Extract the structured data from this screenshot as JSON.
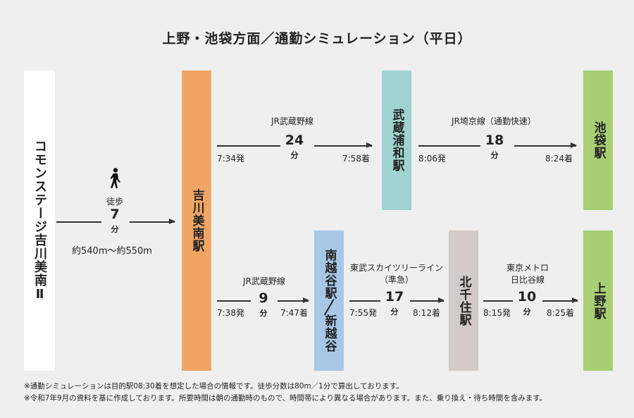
{
  "title": "上野・池袋方面／通勤シミュレーション（平日）",
  "stations": {
    "home": "コモンステージ吉川美南Ⅱ",
    "yoshikawa": "吉川美南駅",
    "musashi_urawa": "武蔵浦和駅",
    "ikebukuro": "池袋駅",
    "minami_koshigaya": "南越谷駅",
    "shin_koshigaya": "新越谷",
    "kita_senju": "北千住駅",
    "ueno": "上野駅"
  },
  "walk": {
    "label": "徒歩",
    "minutes": "7",
    "unit": "分",
    "distance": "約540m〜約550m",
    "icon": "walking-person-icon"
  },
  "upper_route": {
    "leg1": {
      "line": "JR武蔵野線",
      "minutes": "24",
      "unit": "分",
      "depart": "7:34発",
      "arrive": "7:58着"
    },
    "leg2": {
      "line": "JR埼京線（通勤快速）",
      "minutes": "18",
      "unit": "分",
      "depart": "8:06発",
      "arrive": "8:24着"
    }
  },
  "lower_route": {
    "leg1": {
      "line": "JR武蔵野線",
      "minutes": "9",
      "unit": "分",
      "depart": "7:38発",
      "arrive": "7:47着"
    },
    "leg2": {
      "line": "東武スカイツリーライン",
      "line_sub": "（準急）",
      "minutes": "17",
      "unit": "分",
      "depart": "7:55発",
      "arrive": "8:12着"
    },
    "leg3": {
      "line": "東京メトロ",
      "line_sub": "日比谷線",
      "minutes": "10",
      "unit": "分",
      "depart": "8:15発",
      "arrive": "8:25着"
    }
  },
  "notes": [
    "※通勤シミュレーションは目的駅08:30着を想定した場合の情報です。徒歩分数は80m／1分で算出しております。",
    "※令和7年9月の資料を基に作成しております。所要時間は朝の通勤時のもので、時間帯により異なる場合があります。また、乗り換え・待ち時間を含みます。"
  ],
  "colors": {
    "background": "#efefef",
    "home": "#ffffff",
    "yoshikawa": "#f0a565",
    "musashi_urawa": "#9fd3cf",
    "ikebukuro": "#a8cf74",
    "minami_koshigaya": "#a8c7e7",
    "kita_senju": "#d2cbc7",
    "ueno": "#a8cf74"
  }
}
